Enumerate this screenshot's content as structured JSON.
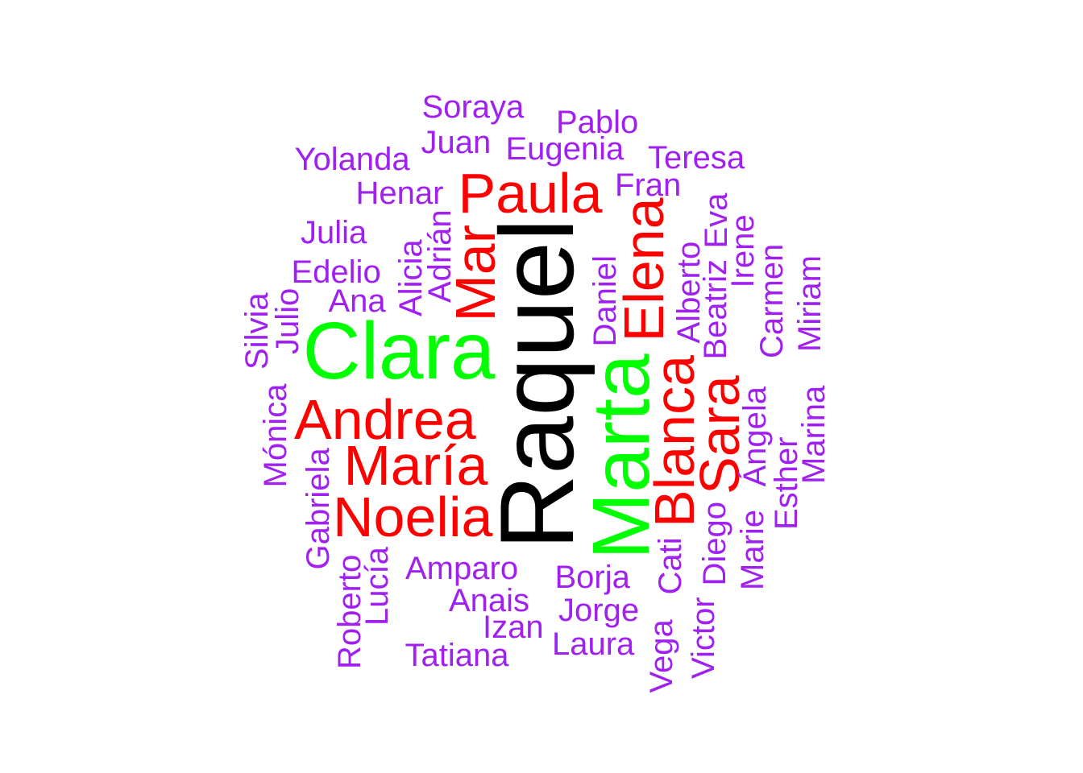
{
  "colors": {
    "level1": "#000000",
    "level2": "#00FF00",
    "level3": "#FF0000",
    "level4": "#A020F0"
  },
  "words": [
    {
      "id": "raquel",
      "text": "Raquel",
      "color": "level1"
    },
    {
      "id": "clara",
      "text": "Clara",
      "color": "level2"
    },
    {
      "id": "marta",
      "text": "Marta",
      "color": "level2"
    },
    {
      "id": "paula",
      "text": "Paula",
      "color": "level3"
    },
    {
      "id": "andrea",
      "text": "Andrea",
      "color": "level3"
    },
    {
      "id": "maria",
      "text": "María",
      "color": "level3"
    },
    {
      "id": "noelia",
      "text": "Noelia",
      "color": "level3"
    },
    {
      "id": "mar",
      "text": "Mar",
      "color": "level3"
    },
    {
      "id": "elena",
      "text": "Elena",
      "color": "level3"
    },
    {
      "id": "blanca",
      "text": "Blanca",
      "color": "level3"
    },
    {
      "id": "sara",
      "text": "Sara",
      "color": "level3"
    },
    {
      "id": "soraya",
      "text": "Soraya",
      "color": "level4"
    },
    {
      "id": "pablo",
      "text": "Pablo",
      "color": "level4"
    },
    {
      "id": "juan",
      "text": "Juan",
      "color": "level4"
    },
    {
      "id": "eugenia",
      "text": "Eugenia",
      "color": "level4"
    },
    {
      "id": "yolanda",
      "text": "Yolanda",
      "color": "level4"
    },
    {
      "id": "teresa",
      "text": "Teresa",
      "color": "level4"
    },
    {
      "id": "henar",
      "text": "Henar",
      "color": "level4"
    },
    {
      "id": "fran",
      "text": "Fran",
      "color": "level4"
    },
    {
      "id": "julia",
      "text": "Julia",
      "color": "level4"
    },
    {
      "id": "edelio",
      "text": "Edelio",
      "color": "level4"
    },
    {
      "id": "ana",
      "text": "Ana",
      "color": "level4"
    },
    {
      "id": "amparo",
      "text": "Amparo",
      "color": "level4"
    },
    {
      "id": "borja",
      "text": "Borja",
      "color": "level4"
    },
    {
      "id": "anais",
      "text": "Anais",
      "color": "level4"
    },
    {
      "id": "jorge",
      "text": "Jorge",
      "color": "level4"
    },
    {
      "id": "izan",
      "text": "Izan",
      "color": "level4"
    },
    {
      "id": "laura",
      "text": "Laura",
      "color": "level4"
    },
    {
      "id": "tatiana",
      "text": "Tatiana",
      "color": "level4"
    },
    {
      "id": "adrian",
      "text": "Adrián",
      "color": "level4"
    },
    {
      "id": "alicia",
      "text": "Alicia",
      "color": "level4"
    },
    {
      "id": "silvia",
      "text": "Silvia",
      "color": "level4"
    },
    {
      "id": "julio",
      "text": "Julio",
      "color": "level4"
    },
    {
      "id": "monica",
      "text": "Mónica",
      "color": "level4"
    },
    {
      "id": "gabriela",
      "text": "Gabriela",
      "color": "level4"
    },
    {
      "id": "roberto",
      "text": "Roberto",
      "color": "level4"
    },
    {
      "id": "lucia",
      "text": "Lucía",
      "color": "level4"
    },
    {
      "id": "daniel",
      "text": "Daniel",
      "color": "level4"
    },
    {
      "id": "alberto",
      "text": "Alberto",
      "color": "level4"
    },
    {
      "id": "eva",
      "text": "Eva",
      "color": "level4"
    },
    {
      "id": "beatriz",
      "text": "Beatriz",
      "color": "level4"
    },
    {
      "id": "irene",
      "text": "Irene",
      "color": "level4"
    },
    {
      "id": "carmen",
      "text": "Carmen",
      "color": "level4"
    },
    {
      "id": "miriam",
      "text": "Miriam",
      "color": "level4"
    },
    {
      "id": "angela",
      "text": "Ángela",
      "color": "level4"
    },
    {
      "id": "marina",
      "text": "Marina",
      "color": "level4"
    },
    {
      "id": "esther",
      "text": "Esther",
      "color": "level4"
    },
    {
      "id": "marie",
      "text": "Marie",
      "color": "level4"
    },
    {
      "id": "diego",
      "text": "Diego",
      "color": "level4"
    },
    {
      "id": "cati",
      "text": "Cati",
      "color": "level4"
    },
    {
      "id": "victor",
      "text": "Victor",
      "color": "level4"
    },
    {
      "id": "vega",
      "text": "Vega",
      "color": "level4"
    }
  ]
}
